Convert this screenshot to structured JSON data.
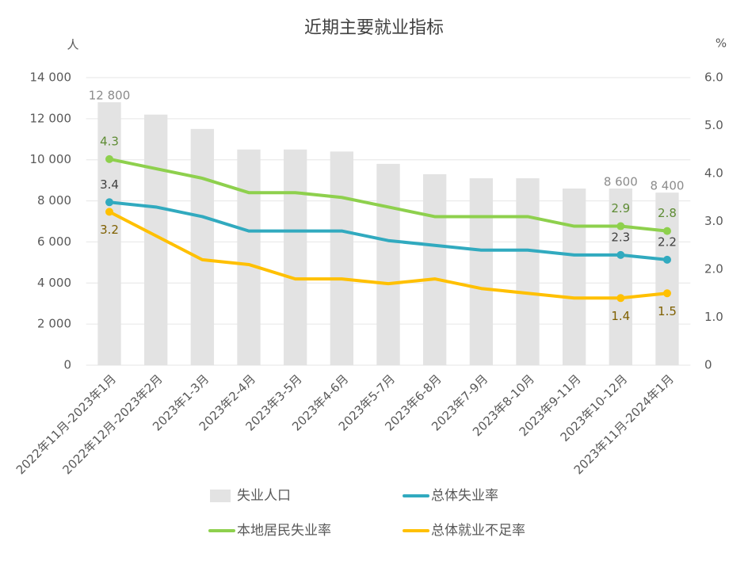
{
  "chart_data": {
    "type": "bar",
    "title": "近期主要就业指标",
    "y_label": "人",
    "y2_label": "%",
    "categories": [
      "2022年11月-2023年1月",
      "2022年12月-2023年2月",
      "2023年1-3月",
      "2023年2-4月",
      "2023年3-5月",
      "2023年4-6月",
      "2023年5-7月",
      "2023年6-8月",
      "2023年7-9月",
      "2023年8-10月",
      "2023年9-11月",
      "2023年10-12月",
      "2023年11月-2024年1月"
    ],
    "ylim": [
      0,
      14000
    ],
    "yticks": [
      0,
      {
        "value": 2000,
        "label": "2 000"
      },
      {
        "value": 4000,
        "label": "4 000"
      },
      {
        "value": 6000,
        "label": "6 000"
      },
      {
        "value": 8000,
        "label": "8 000"
      },
      {
        "value": 10000,
        "label": "10 000"
      },
      {
        "value": 12000,
        "label": "12 000"
      },
      {
        "value": 14000,
        "label": "14 000"
      }
    ],
    "y2lim": [
      0,
      6
    ],
    "y2ticks": [
      0,
      {
        "value": 1,
        "label": "1.0"
      },
      {
        "value": 2,
        "label": "2.0"
      },
      {
        "value": 3,
        "label": "3.0"
      },
      {
        "value": 4,
        "label": "4.0"
      },
      {
        "value": 5,
        "label": "5.0"
      },
      {
        "value": 6,
        "label": "6.0"
      }
    ],
    "grid": true,
    "series": [
      {
        "name": "失业人口",
        "type": "bar",
        "color": "#e3e3e3",
        "label_color": "#8c8c8c",
        "values": [
          12800,
          12200,
          11500,
          10500,
          10500,
          10400,
          9800,
          9300,
          9100,
          9100,
          8600,
          8600,
          8400
        ],
        "value_labels": [
          "12 800",
          null,
          null,
          null,
          null,
          null,
          null,
          null,
          null,
          null,
          null,
          "8 600",
          "8 400"
        ]
      },
      {
        "name": "总体失业率",
        "type": "line",
        "axis": "y2",
        "color": "#31aabf",
        "label_color": "#404040",
        "label_position": "above",
        "values": [
          3.4,
          3.3,
          3.1,
          2.8,
          2.8,
          2.8,
          2.6,
          2.5,
          2.4,
          2.4,
          2.3,
          2.3,
          2.2
        ],
        "labeled_points": [
          0,
          11,
          12
        ]
      },
      {
        "name": "本地居民失业率",
        "type": "line",
        "axis": "y2",
        "color": "#8ed04d",
        "label_color": "#5e8c34",
        "label_position": "above",
        "values": [
          4.3,
          4.1,
          3.9,
          3.6,
          3.6,
          3.5,
          3.3,
          3.1,
          3.1,
          3.1,
          2.9,
          2.9,
          2.8
        ],
        "labeled_points": [
          0,
          11,
          12
        ]
      },
      {
        "name": "总体就业不足率",
        "type": "line",
        "axis": "y2",
        "color": "#ffc000",
        "label_color": "#7f6000",
        "label_position": "below",
        "values": [
          3.2,
          2.7,
          2.2,
          2.1,
          1.8,
          1.8,
          1.7,
          1.8,
          1.6,
          1.5,
          1.4,
          1.4,
          1.5
        ],
        "labeled_points": [
          0,
          11,
          12
        ]
      }
    ]
  }
}
